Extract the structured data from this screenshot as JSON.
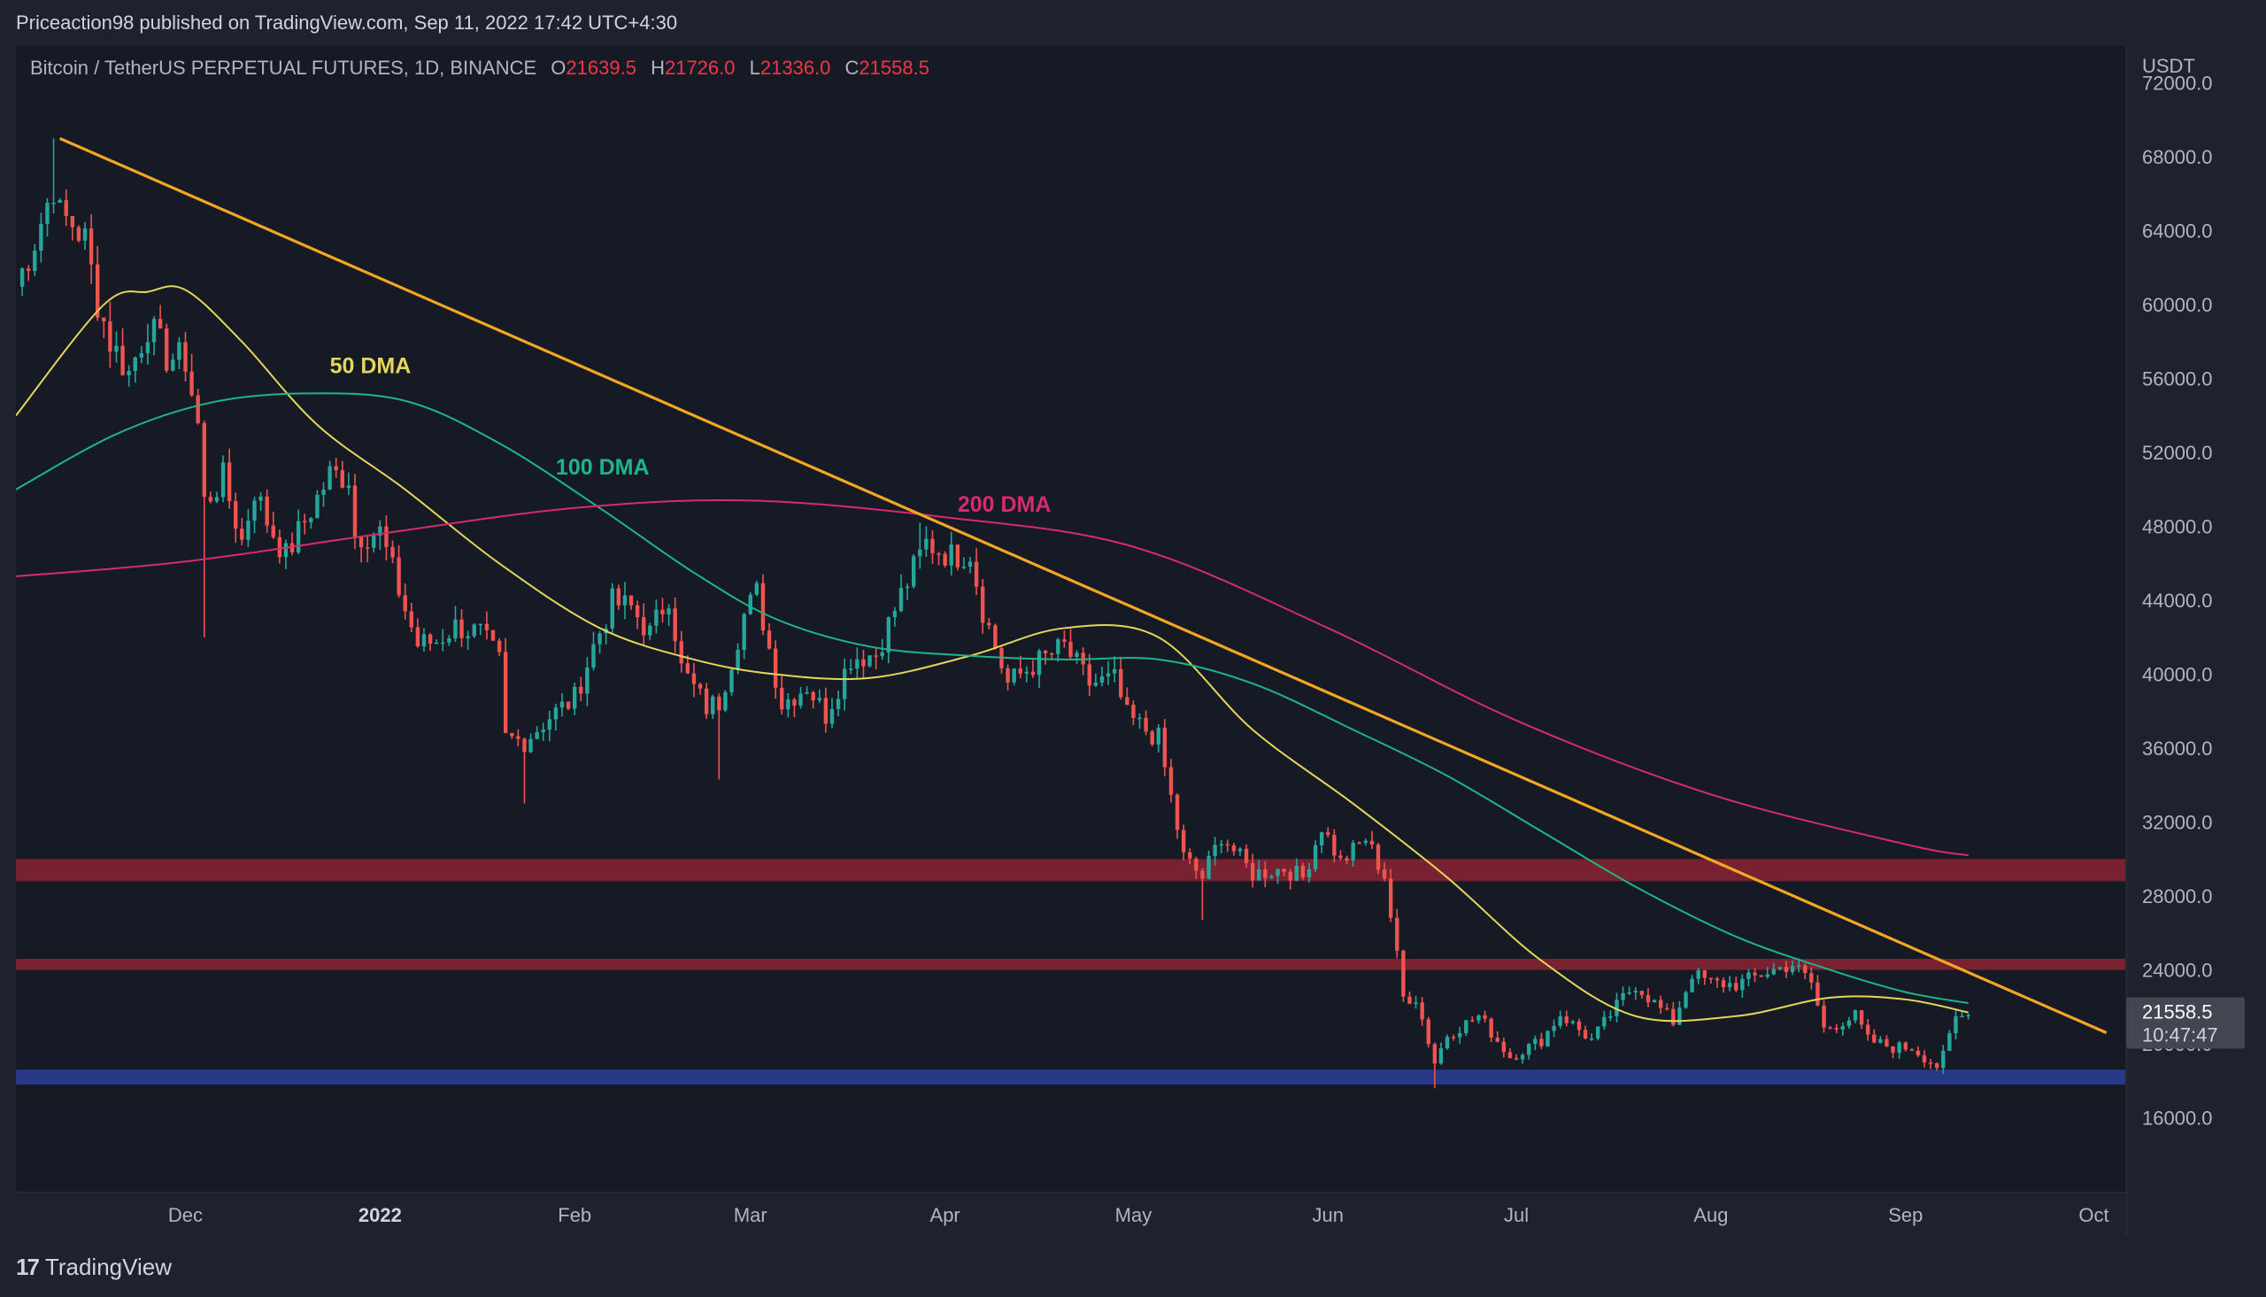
{
  "header": {
    "publisher_line": "Priceaction98 published on TradingView.com, Sep 11, 2022 17:42 UTC+4:30"
  },
  "symbol": {
    "title": "Bitcoin / TetherUS PERPETUAL FUTURES, 1D, BINANCE",
    "open_label": "O",
    "open": "21639.5",
    "high_label": "H",
    "high": "21726.0",
    "low_label": "L",
    "low": "21336.0",
    "close_label": "C",
    "close": "21558.5"
  },
  "footer": {
    "brand": "TradingView",
    "brand_mark": "17"
  },
  "colors": {
    "background": "#161a25",
    "up": "#26a69a",
    "down": "#ef5350",
    "trendline": "#f5a623",
    "dma50": "#e3d65a",
    "dma100": "#1fb489",
    "dma200": "#d62b6c",
    "resistance_zone": "#8a2332",
    "support_zone": "#2a3e9b"
  },
  "chart_data": {
    "type": "candlestick",
    "currency": "USDT",
    "ylim": [
      12000,
      74000
    ],
    "y_ticks": [
      16000,
      20000,
      24000,
      28000,
      32000,
      36000,
      40000,
      44000,
      48000,
      52000,
      56000,
      60000,
      64000,
      68000,
      72000
    ],
    "y_tick_labels": [
      "16000.0",
      "20000.0",
      "24000.0",
      "28000.0",
      "32000.0",
      "36000.0",
      "40000.0",
      "44000.0",
      "48000.0",
      "52000.0",
      "56000.0",
      "60000.0",
      "64000.0",
      "68000.0",
      "72000.0"
    ],
    "x_range": [
      "2021-11-04",
      "2022-10-06"
    ],
    "x_ticks": [
      {
        "date": "2021-12-01",
        "label": "Dec",
        "bold": false
      },
      {
        "date": "2022-01-01",
        "label": "2022",
        "bold": true
      },
      {
        "date": "2022-02-01",
        "label": "Feb",
        "bold": false
      },
      {
        "date": "2022-03-01",
        "label": "Mar",
        "bold": false
      },
      {
        "date": "2022-04-01",
        "label": "Apr",
        "bold": false
      },
      {
        "date": "2022-05-01",
        "label": "May",
        "bold": false
      },
      {
        "date": "2022-06-01",
        "label": "Jun",
        "bold": false
      },
      {
        "date": "2022-07-01",
        "label": "Jul",
        "bold": false
      },
      {
        "date": "2022-08-01",
        "label": "Aug",
        "bold": false
      },
      {
        "date": "2022-09-01",
        "label": "Sep",
        "bold": false
      },
      {
        "date": "2022-10-01",
        "label": "Oct",
        "bold": false
      }
    ],
    "price_anchors": [
      [
        "2021-11-04",
        61000
      ],
      [
        "2021-11-07",
        63500
      ],
      [
        "2021-11-10",
        66500
      ],
      [
        "2021-11-11",
        64800
      ],
      [
        "2021-11-13",
        64400
      ],
      [
        "2021-11-15",
        63500
      ],
      [
        "2021-11-17",
        60200
      ],
      [
        "2021-11-19",
        58000
      ],
      [
        "2021-11-22",
        56300
      ],
      [
        "2021-11-25",
        58900
      ],
      [
        "2021-11-28",
        57200
      ],
      [
        "2021-12-01",
        57000
      ],
      [
        "2021-12-03",
        53500
      ],
      [
        "2021-12-04",
        49300
      ],
      [
        "2021-12-07",
        50600
      ],
      [
        "2021-12-10",
        47200
      ],
      [
        "2021-12-12",
        50000
      ],
      [
        "2021-12-14",
        48300
      ],
      [
        "2021-12-17",
        46400
      ],
      [
        "2021-12-21",
        48900
      ],
      [
        "2021-12-24",
        50800
      ],
      [
        "2021-12-27",
        50700
      ],
      [
        "2021-12-28",
        47500
      ],
      [
        "2022-01-01",
        47700
      ],
      [
        "2022-01-05",
        43500
      ],
      [
        "2022-01-07",
        41600
      ],
      [
        "2022-01-10",
        41800
      ],
      [
        "2022-01-13",
        42600
      ],
      [
        "2022-01-17",
        42200
      ],
      [
        "2022-01-20",
        40700
      ],
      [
        "2022-01-21",
        36500
      ],
      [
        "2022-01-24",
        36400
      ],
      [
        "2022-01-28",
        37700
      ],
      [
        "2022-02-01",
        38700
      ],
      [
        "2022-02-04",
        41500
      ],
      [
        "2022-02-07",
        43900
      ],
      [
        "2022-02-10",
        43600
      ],
      [
        "2022-02-13",
        42200
      ],
      [
        "2022-02-16",
        44300
      ],
      [
        "2022-02-18",
        40300
      ],
      [
        "2022-02-22",
        38200
      ],
      [
        "2022-02-24",
        38500
      ],
      [
        "2022-02-28",
        43200
      ],
      [
        "2022-03-02",
        44400
      ],
      [
        "2022-03-06",
        38400
      ],
      [
        "2022-03-10",
        39400
      ],
      [
        "2022-03-13",
        37800
      ],
      [
        "2022-03-17",
        40900
      ],
      [
        "2022-03-21",
        41100
      ],
      [
        "2022-03-25",
        44300
      ],
      [
        "2022-03-29",
        47100
      ],
      [
        "2022-04-02",
        46400
      ],
      [
        "2022-04-05",
        46600
      ],
      [
        "2022-04-07",
        43500
      ],
      [
        "2022-04-11",
        39500
      ],
      [
        "2022-04-15",
        40500
      ],
      [
        "2022-04-20",
        41500
      ],
      [
        "2022-04-24",
        39500
      ],
      [
        "2022-04-28",
        39700
      ],
      [
        "2022-04-30",
        37700
      ],
      [
        "2022-05-05",
        36500
      ],
      [
        "2022-05-09",
        30100
      ],
      [
        "2022-05-12",
        29000
      ],
      [
        "2022-05-15",
        31300
      ],
      [
        "2022-05-20",
        29200
      ],
      [
        "2022-05-25",
        29500
      ],
      [
        "2022-05-28",
        29000
      ],
      [
        "2022-05-31",
        31800
      ],
      [
        "2022-06-03",
        29800
      ],
      [
        "2022-06-07",
        31100
      ],
      [
        "2022-06-10",
        29100
      ],
      [
        "2022-06-13",
        22500
      ],
      [
        "2022-06-15",
        22500
      ],
      [
        "2022-06-18",
        19000
      ],
      [
        "2022-06-20",
        20500
      ],
      [
        "2022-06-25",
        21500
      ],
      [
        "2022-06-30",
        19300
      ],
      [
        "2022-07-05",
        20200
      ],
      [
        "2022-07-08",
        21600
      ],
      [
        "2022-07-13",
        20200
      ],
      [
        "2022-07-18",
        22500
      ],
      [
        "2022-07-20",
        23200
      ],
      [
        "2022-07-26",
        21200
      ],
      [
        "2022-07-29",
        23800
      ],
      [
        "2022-08-01",
        23300
      ],
      [
        "2022-08-05",
        23200
      ],
      [
        "2022-08-10",
        23900
      ],
      [
        "2022-08-14",
        24300
      ],
      [
        "2022-08-17",
        23300
      ],
      [
        "2022-08-19",
        20800
      ],
      [
        "2022-08-24",
        21500
      ],
      [
        "2022-08-26",
        20200
      ],
      [
        "2022-08-30",
        19800
      ],
      [
        "2022-09-02",
        19800
      ],
      [
        "2022-09-06",
        18800
      ],
      [
        "2022-09-07",
        19300
      ],
      [
        "2022-09-09",
        21400
      ],
      [
        "2022-09-11",
        21558.5
      ]
    ],
    "wick_extremes": [
      {
        "date": "2021-11-10",
        "high": 69000
      },
      {
        "date": "2021-12-04",
        "low": 42000
      },
      {
        "date": "2022-01-24",
        "low": 33000
      },
      {
        "date": "2022-02-24",
        "low": 34300
      },
      {
        "date": "2022-03-28",
        "high": 48200
      },
      {
        "date": "2022-05-12",
        "low": 26700
      },
      {
        "date": "2022-06-18",
        "low": 17600
      }
    ],
    "moving_averages": [
      {
        "name": "50 DMA",
        "color": "#e3d65a",
        "points": [
          [
            "2021-11-04",
            54000
          ],
          [
            "2021-11-18",
            60000
          ],
          [
            "2021-11-25",
            60700
          ],
          [
            "2021-12-01",
            60800
          ],
          [
            "2021-12-10",
            58000
          ],
          [
            "2021-12-22",
            53500
          ],
          [
            "2022-01-05",
            50000
          ],
          [
            "2022-01-20",
            46000
          ],
          [
            "2022-02-05",
            42500
          ],
          [
            "2022-02-20",
            40800
          ],
          [
            "2022-03-05",
            40000
          ],
          [
            "2022-03-20",
            39800
          ],
          [
            "2022-04-05",
            41000
          ],
          [
            "2022-04-20",
            42500
          ],
          [
            "2022-05-05",
            42000
          ],
          [
            "2022-05-20",
            37000
          ],
          [
            "2022-06-05",
            33000
          ],
          [
            "2022-06-20",
            29000
          ],
          [
            "2022-07-05",
            24500
          ],
          [
            "2022-07-20",
            21500
          ],
          [
            "2022-08-05",
            21500
          ],
          [
            "2022-08-20",
            22500
          ],
          [
            "2022-09-01",
            22400
          ],
          [
            "2022-09-11",
            21700
          ]
        ]
      },
      {
        "name": "100 DMA",
        "color": "#1fb489",
        "points": [
          [
            "2021-11-04",
            50000
          ],
          [
            "2021-11-20",
            53000
          ],
          [
            "2021-12-05",
            54700
          ],
          [
            "2021-12-20",
            55200
          ],
          [
            "2022-01-05",
            54800
          ],
          [
            "2022-01-20",
            52500
          ],
          [
            "2022-02-05",
            49000
          ],
          [
            "2022-02-20",
            45500
          ],
          [
            "2022-03-05",
            43000
          ],
          [
            "2022-03-20",
            41500
          ],
          [
            "2022-04-05",
            41000
          ],
          [
            "2022-04-20",
            40800
          ],
          [
            "2022-05-05",
            40800
          ],
          [
            "2022-05-20",
            39500
          ],
          [
            "2022-06-05",
            37000
          ],
          [
            "2022-06-20",
            34500
          ],
          [
            "2022-07-05",
            31500
          ],
          [
            "2022-07-20",
            28500
          ],
          [
            "2022-08-05",
            25800
          ],
          [
            "2022-08-20",
            24000
          ],
          [
            "2022-09-01",
            22800
          ],
          [
            "2022-09-11",
            22200
          ]
        ]
      },
      {
        "name": "200 DMA",
        "color": "#d62b6c",
        "points": [
          [
            "2021-11-04",
            45300
          ],
          [
            "2021-12-01",
            46100
          ],
          [
            "2022-01-01",
            47600
          ],
          [
            "2022-02-01",
            49000
          ],
          [
            "2022-03-01",
            49400
          ],
          [
            "2022-04-01",
            48500
          ],
          [
            "2022-05-01",
            46900
          ],
          [
            "2022-06-01",
            42500
          ],
          [
            "2022-07-01",
            37500
          ],
          [
            "2022-08-01",
            33500
          ],
          [
            "2022-09-01",
            30800
          ],
          [
            "2022-09-11",
            30200
          ]
        ]
      }
    ],
    "trendline": {
      "color": "#f5a623",
      "from": [
        "2021-11-11",
        69000
      ],
      "to": [
        "2022-10-03",
        20600
      ]
    },
    "zones": [
      {
        "name": "resistance-zone-upper",
        "from": 28800,
        "to": 30000,
        "color": "#8a2332"
      },
      {
        "name": "resistance-zone-lower",
        "from": 24000,
        "to": 24600,
        "color": "#8a2332"
      },
      {
        "name": "support-zone",
        "from": 17800,
        "to": 18600,
        "color": "#2a3e9b"
      }
    ],
    "annotations": [
      {
        "text": "50 DMA",
        "color": "#e3d65a",
        "date": "2021-12-24",
        "price": 56300
      },
      {
        "text": "100 DMA",
        "color": "#1fb489",
        "date": "2022-01-29",
        "price": 50800
      },
      {
        "text": "200 DMA",
        "color": "#d62b6c",
        "date": "2022-04-03",
        "price": 48800
      }
    ],
    "last_price": {
      "price": "21558.5",
      "countdown": "10:47:47"
    }
  }
}
